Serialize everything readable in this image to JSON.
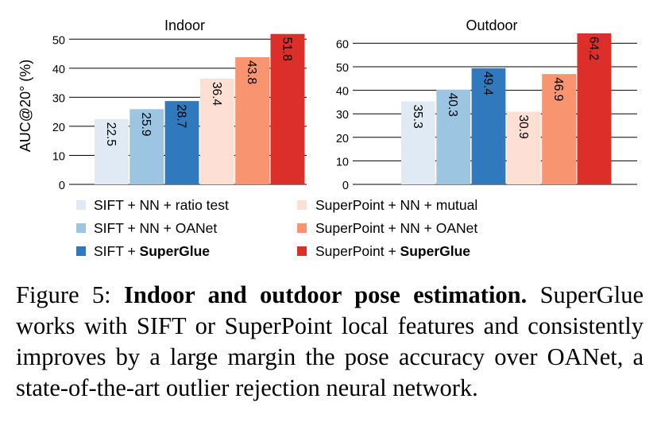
{
  "chart_data": {
    "type": "bar",
    "ylabel": "AUC@20° (%)",
    "series": [
      {
        "name": "SIFT + NN + ratio test",
        "name_plain": "SIFT + NN + ratio test",
        "name_bold": "",
        "color": "#dfeaf5"
      },
      {
        "name": "SIFT + NN + OANet",
        "name_plain": "SIFT + NN + OANet",
        "name_bold": "",
        "color": "#9cc5e2"
      },
      {
        "name": "SIFT + SuperGlue",
        "name_plain": "SIFT + ",
        "name_bold": "SuperGlue",
        "color": "#3079bc"
      },
      {
        "name": "SuperPoint + NN + mutual",
        "name_plain": "SuperPoint + NN + mutual",
        "name_bold": "",
        "color": "#fde0d3"
      },
      {
        "name": "SuperPoint + NN + OANet",
        "name_plain": "SuperPoint + NN + OANet",
        "name_bold": "",
        "color": "#f8946f"
      },
      {
        "name": "SuperPoint + SuperGlue",
        "name_plain": "SuperPoint + ",
        "name_bold": "SuperGlue",
        "color": "#dc2f2a"
      }
    ],
    "panels": [
      {
        "title": "Indoor",
        "values": [
          22.5,
          25.9,
          28.7,
          36.4,
          43.8,
          51.8
        ],
        "value_labels": [
          "22.5",
          "25.9",
          "28.7",
          "36.4",
          "43.8",
          "51.8"
        ],
        "ylim": [
          0,
          52
        ],
        "yticks": [
          0,
          10,
          20,
          30,
          40,
          50
        ],
        "ytick_labels": [
          "0",
          "10",
          "20",
          "30",
          "40",
          "50"
        ]
      },
      {
        "title": "Outdoor",
        "values": [
          35.3,
          40.3,
          49.4,
          30.9,
          46.9,
          64.2
        ],
        "value_labels": [
          "35.3",
          "40.3",
          "49.4",
          "30.9",
          "46.9",
          "64.2"
        ],
        "ylim": [
          0,
          64.2
        ],
        "yticks": [
          0,
          10,
          20,
          30,
          40,
          50,
          60
        ],
        "ytick_labels": [
          "0",
          "10",
          "20",
          "30",
          "40",
          "50",
          "60"
        ]
      }
    ],
    "grid": true,
    "legend": "bottom"
  },
  "caption": {
    "label": "Figure 5:",
    "title": "Indoor and outdoor pose estimation.",
    "text": "SuperGlue works with SIFT or SuperPoint local features and consistently improves by a large margin the pose accuracy over OANet, a state-of-the-art outlier rejection neural network."
  }
}
